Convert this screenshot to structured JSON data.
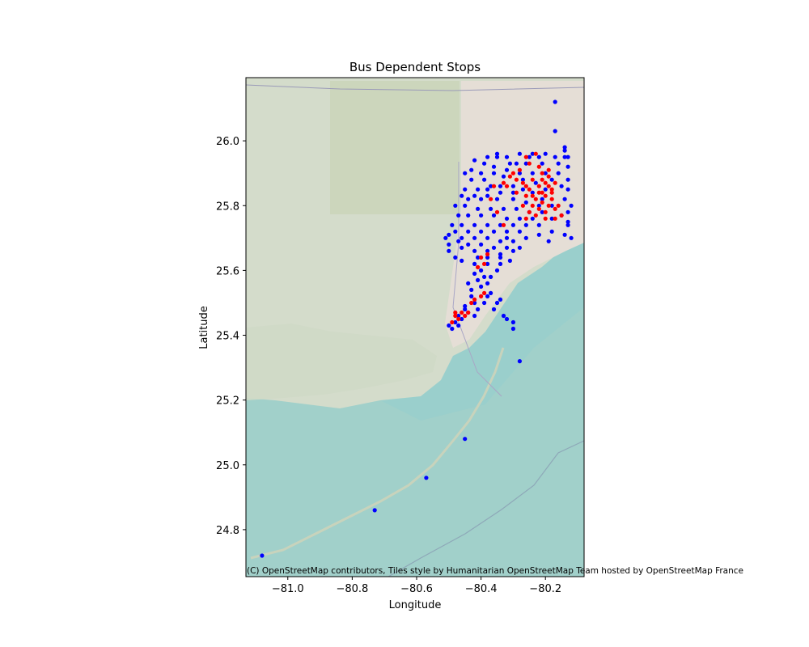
{
  "chart_data": {
    "type": "scatter",
    "title": "Bus Dependent Stops",
    "xlabel": "Longitude",
    "ylabel": "Latitude",
    "xlim": [
      -81.13,
      -80.08
    ],
    "ylim": [
      24.655,
      26.195
    ],
    "xticks": [
      -81.0,
      -80.8,
      -80.6,
      -80.4,
      -80.2
    ],
    "xtick_labels": [
      "−81.0",
      "−80.8",
      "−80.6",
      "−80.4",
      "−80.2"
    ],
    "yticks": [
      24.8,
      25.0,
      25.2,
      25.4,
      25.6,
      25.8,
      26.0
    ],
    "ytick_labels": [
      "24.8",
      "25.0",
      "25.2",
      "25.4",
      "25.6",
      "25.8",
      "26.0"
    ],
    "grid": false,
    "basemap": "OpenStreetMap (Humanitarian style) tiles",
    "attribution": "(C) OpenStreetMap contributors, Tiles style by Humanitarian OpenStreetMap Team hosted by OpenStreetMap France",
    "series": [
      {
        "color": "#0000ff",
        "points": [
          [
            -80.17,
            26.12
          ],
          [
            -80.17,
            26.03
          ],
          [
            -80.14,
            25.97
          ],
          [
            -80.14,
            25.98
          ],
          [
            -80.14,
            25.95
          ],
          [
            -80.2,
            25.96
          ],
          [
            -80.24,
            25.96
          ],
          [
            -80.28,
            25.96
          ],
          [
            -80.32,
            25.95
          ],
          [
            -80.35,
            25.95
          ],
          [
            -80.38,
            25.95
          ],
          [
            -80.42,
            25.94
          ],
          [
            -80.45,
            25.9
          ],
          [
            -80.4,
            25.9
          ],
          [
            -80.36,
            25.9
          ],
          [
            -80.32,
            25.91
          ],
          [
            -80.28,
            25.9
          ],
          [
            -80.24,
            25.9
          ],
          [
            -80.2,
            25.9
          ],
          [
            -80.16,
            25.9
          ],
          [
            -80.13,
            25.88
          ],
          [
            -80.13,
            25.85
          ],
          [
            -80.14,
            25.82
          ],
          [
            -80.13,
            25.78
          ],
          [
            -80.13,
            25.74
          ],
          [
            -80.12,
            25.7
          ],
          [
            -80.15,
            25.77
          ],
          [
            -80.18,
            25.8
          ],
          [
            -80.21,
            25.82
          ],
          [
            -80.24,
            25.84
          ],
          [
            -80.27,
            25.85
          ],
          [
            -80.3,
            25.86
          ],
          [
            -80.34,
            25.86
          ],
          [
            -80.38,
            25.85
          ],
          [
            -80.41,
            25.85
          ],
          [
            -80.45,
            25.85
          ],
          [
            -80.48,
            25.8
          ],
          [
            -80.45,
            25.8
          ],
          [
            -80.41,
            25.79
          ],
          [
            -80.37,
            25.79
          ],
          [
            -80.33,
            25.79
          ],
          [
            -80.29,
            25.79
          ],
          [
            -80.25,
            25.78
          ],
          [
            -80.21,
            25.78
          ],
          [
            -80.18,
            25.76
          ],
          [
            -80.22,
            25.74
          ],
          [
            -80.26,
            25.74
          ],
          [
            -80.3,
            25.74
          ],
          [
            -80.34,
            25.74
          ],
          [
            -80.38,
            25.74
          ],
          [
            -80.42,
            25.74
          ],
          [
            -80.46,
            25.74
          ],
          [
            -80.49,
            25.74
          ],
          [
            -80.5,
            25.71
          ],
          [
            -80.46,
            25.7
          ],
          [
            -80.42,
            25.7
          ],
          [
            -80.38,
            25.7
          ],
          [
            -80.34,
            25.69
          ],
          [
            -80.3,
            25.69
          ],
          [
            -80.26,
            25.7
          ],
          [
            -80.22,
            25.71
          ],
          [
            -80.5,
            25.68
          ],
          [
            -80.46,
            25.67
          ],
          [
            -80.42,
            25.66
          ],
          [
            -80.38,
            25.66
          ],
          [
            -80.34,
            25.65
          ],
          [
            -80.3,
            25.66
          ],
          [
            -80.42,
            25.62
          ],
          [
            -80.38,
            25.62
          ],
          [
            -80.34,
            25.62
          ],
          [
            -80.4,
            25.6
          ],
          [
            -80.37,
            25.58
          ],
          [
            -80.4,
            25.55
          ],
          [
            -80.43,
            25.52
          ],
          [
            -80.45,
            25.49
          ],
          [
            -80.47,
            25.46
          ],
          [
            -80.48,
            25.44
          ],
          [
            -80.49,
            25.42
          ],
          [
            -80.45,
            25.48
          ],
          [
            -80.42,
            25.5
          ],
          [
            -80.38,
            25.52
          ],
          [
            -80.36,
            25.48
          ],
          [
            -80.33,
            25.46
          ],
          [
            -80.3,
            25.42
          ],
          [
            -80.46,
            25.45
          ],
          [
            -80.44,
            25.47
          ],
          [
            -80.41,
            25.48
          ],
          [
            -80.39,
            25.5
          ],
          [
            -80.35,
            25.5
          ],
          [
            -80.28,
            25.32
          ],
          [
            -80.45,
            25.08
          ],
          [
            -80.57,
            24.96
          ],
          [
            -80.73,
            24.86
          ],
          [
            -81.08,
            24.72
          ],
          [
            -80.21,
            25.93
          ],
          [
            -80.26,
            25.93
          ],
          [
            -80.31,
            25.93
          ],
          [
            -80.36,
            25.92
          ],
          [
            -80.39,
            25.88
          ],
          [
            -80.43,
            25.88
          ],
          [
            -80.3,
            25.82
          ],
          [
            -80.26,
            25.81
          ],
          [
            -80.22,
            25.8
          ],
          [
            -80.35,
            25.82
          ],
          [
            -80.4,
            25.82
          ],
          [
            -80.44,
            25.82
          ],
          [
            -80.47,
            25.77
          ],
          [
            -80.44,
            25.77
          ],
          [
            -80.4,
            25.77
          ],
          [
            -80.36,
            25.77
          ],
          [
            -80.32,
            25.76
          ],
          [
            -80.28,
            25.76
          ],
          [
            -80.24,
            25.76
          ],
          [
            -80.15,
            25.86
          ],
          [
            -80.16,
            25.93
          ],
          [
            -80.13,
            25.92
          ],
          [
            -80.36,
            25.72
          ],
          [
            -80.32,
            25.72
          ],
          [
            -80.28,
            25.72
          ],
          [
            -80.44,
            25.72
          ],
          [
            -80.4,
            25.72
          ],
          [
            -80.48,
            25.72
          ],
          [
            -80.44,
            25.68
          ],
          [
            -80.4,
            25.68
          ],
          [
            -80.36,
            25.67
          ],
          [
            -80.32,
            25.67
          ],
          [
            -80.28,
            25.67
          ],
          [
            -80.38,
            25.64
          ],
          [
            -80.34,
            25.64
          ],
          [
            -80.41,
            25.64
          ],
          [
            -80.35,
            25.6
          ],
          [
            -80.31,
            25.63
          ],
          [
            -80.32,
            25.7
          ],
          [
            -80.19,
            25.69
          ],
          [
            -80.18,
            25.72
          ],
          [
            -80.43,
            25.54
          ],
          [
            -80.41,
            25.57
          ],
          [
            -80.39,
            25.58
          ],
          [
            -80.46,
            25.63
          ],
          [
            -80.47,
            25.69
          ],
          [
            -80.29,
            25.93
          ],
          [
            -80.25,
            25.95
          ],
          [
            -80.33,
            25.89
          ],
          [
            -80.37,
            25.86
          ],
          [
            -80.43,
            25.91
          ],
          [
            -80.39,
            25.93
          ],
          [
            -80.2,
            25.85
          ],
          [
            -80.18,
            25.88
          ],
          [
            -80.23,
            25.87
          ],
          [
            -80.27,
            25.88
          ],
          [
            -80.3,
            25.84
          ],
          [
            -80.34,
            25.84
          ],
          [
            -80.38,
            25.83
          ],
          [
            -80.42,
            25.83
          ],
          [
            -80.46,
            25.83
          ],
          [
            -80.35,
            25.96
          ],
          [
            -80.22,
            25.95
          ],
          [
            -80.17,
            25.95
          ],
          [
            -80.13,
            25.95
          ],
          [
            -80.12,
            25.8
          ],
          [
            -80.13,
            25.75
          ],
          [
            -80.14,
            25.71
          ],
          [
            -80.48,
            25.64
          ],
          [
            -80.5,
            25.66
          ],
          [
            -80.51,
            25.7
          ],
          [
            -80.42,
            25.59
          ],
          [
            -80.38,
            25.56
          ],
          [
            -80.44,
            25.56
          ],
          [
            -80.3,
            25.44
          ],
          [
            -80.32,
            25.45
          ],
          [
            -80.5,
            25.43
          ],
          [
            -80.47,
            25.43
          ],
          [
            -80.37,
            25.53
          ],
          [
            -80.34,
            25.51
          ],
          [
            -80.42,
            25.46
          ]
        ]
      },
      {
        "color": "#ff0000",
        "points": [
          [
            -80.2,
            25.83
          ],
          [
            -80.21,
            25.81
          ],
          [
            -80.19,
            25.8
          ],
          [
            -80.22,
            25.79
          ],
          [
            -80.2,
            25.78
          ],
          [
            -80.23,
            25.82
          ],
          [
            -80.24,
            25.8
          ],
          [
            -80.21,
            25.84
          ],
          [
            -80.18,
            25.84
          ],
          [
            -80.19,
            25.86
          ],
          [
            -80.22,
            25.86
          ],
          [
            -80.25,
            25.85
          ],
          [
            -80.26,
            25.83
          ],
          [
            -80.18,
            25.82
          ],
          [
            -80.17,
            25.79
          ],
          [
            -80.2,
            25.76
          ],
          [
            -80.23,
            25.77
          ],
          [
            -80.25,
            25.78
          ],
          [
            -80.27,
            25.87
          ],
          [
            -80.24,
            25.88
          ],
          [
            -80.21,
            25.88
          ],
          [
            -80.28,
            25.91
          ],
          [
            -80.25,
            25.93
          ],
          [
            -80.22,
            25.92
          ],
          [
            -80.19,
            25.91
          ],
          [
            -80.23,
            25.96
          ],
          [
            -80.26,
            25.95
          ],
          [
            -80.3,
            25.9
          ],
          [
            -80.32,
            25.86
          ],
          [
            -80.29,
            25.84
          ],
          [
            -80.15,
            25.77
          ],
          [
            -80.16,
            25.8
          ],
          [
            -80.17,
            25.87
          ],
          [
            -80.19,
            25.89
          ],
          [
            -80.27,
            25.8
          ],
          [
            -80.26,
            25.76
          ],
          [
            -80.37,
            25.82
          ],
          [
            -80.35,
            25.78
          ],
          [
            -80.33,
            25.74
          ],
          [
            -80.48,
            25.46
          ],
          [
            -80.47,
            25.45
          ],
          [
            -80.49,
            25.44
          ],
          [
            -80.46,
            25.47
          ],
          [
            -80.45,
            25.46
          ],
          [
            -80.44,
            25.47
          ],
          [
            -80.48,
            25.47
          ],
          [
            -80.42,
            25.51
          ],
          [
            -80.4,
            25.52
          ],
          [
            -80.39,
            25.53
          ],
          [
            -80.43,
            25.5
          ],
          [
            -80.41,
            25.61
          ],
          [
            -80.39,
            25.62
          ],
          [
            -80.4,
            25.64
          ],
          [
            -80.38,
            25.65
          ],
          [
            -80.22,
            25.84
          ],
          [
            -80.2,
            25.87
          ],
          [
            -80.24,
            25.83
          ],
          [
            -80.18,
            25.85
          ],
          [
            -80.21,
            25.9
          ],
          [
            -80.17,
            25.76
          ],
          [
            -80.26,
            25.86
          ],
          [
            -80.29,
            25.88
          ],
          [
            -80.31,
            25.89
          ],
          [
            -80.36,
            25.86
          ],
          [
            -80.33,
            25.87
          ]
        ]
      }
    ]
  }
}
